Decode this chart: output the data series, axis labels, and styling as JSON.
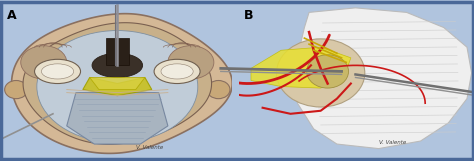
{
  "figure_width": 4.74,
  "figure_height": 1.61,
  "dpi": 100,
  "bg_color": "#b0c4de",
  "border_color": "#5577aa",
  "label_A": "A",
  "label_B": "B",
  "label_fontsize": 9,
  "signature": "V. Valente",
  "panelA": {
    "skull_outer_fc": "#d4b896",
    "skull_outer_ec": "#8a7060",
    "skull_inner_fc": "#c8a878",
    "brain_fc": "#c8d8e0",
    "eye_fc": "#e8e0d0",
    "clivus_fc": "#c8c840",
    "brainstem_fc": "#b0b8c8",
    "bg": "#c8d8e8"
  },
  "panelB": {
    "cerebellum_fc": "#e8e8f0",
    "yellow_fc": "#f0e840",
    "vessel_color": "#cc2222",
    "nerve_color": "#c8a800",
    "bg": "#d8e4f0"
  }
}
